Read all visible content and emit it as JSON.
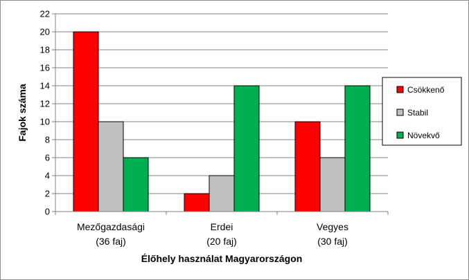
{
  "chart_data": {
    "type": "bar",
    "title": "",
    "xlabel": "Élőhely használat Magyarországon",
    "ylabel": "Fajok száma",
    "ylim": [
      0,
      22
    ],
    "ytick_step": 2,
    "grid": true,
    "legend_position": "right",
    "categories": [
      [
        "Mezőgazdasági",
        "(36 faj)"
      ],
      [
        "Erdei",
        "(20 faj)"
      ],
      [
        "Vegyes",
        "(30 faj)"
      ]
    ],
    "series": [
      {
        "name": "Csökkenő",
        "color": "#ff0000",
        "values": [
          20,
          2,
          10
        ]
      },
      {
        "name": "Stabil",
        "color": "#c0c0c0",
        "values": [
          10,
          4,
          6
        ]
      },
      {
        "name": "Növekvő",
        "color": "#00b050",
        "values": [
          6,
          14,
          14
        ]
      }
    ]
  }
}
